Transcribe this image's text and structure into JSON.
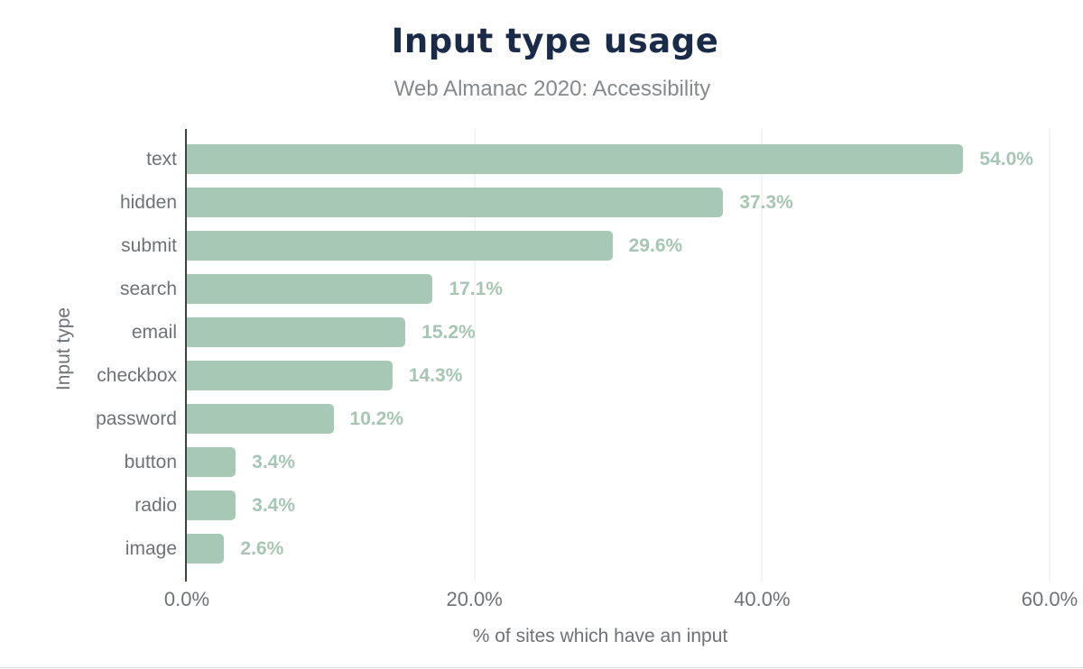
{
  "chart_data": {
    "type": "bar",
    "orientation": "horizontal",
    "title": "Input type usage",
    "subtitle": "Web Almanac 2020: Accessibility",
    "xlabel": "% of sites which have an input",
    "ylabel": "Input type",
    "categories": [
      "text",
      "hidden",
      "submit",
      "search",
      "email",
      "checkbox",
      "password",
      "button",
      "radio",
      "image"
    ],
    "values": [
      54.0,
      37.3,
      29.6,
      17.1,
      15.2,
      14.3,
      10.2,
      3.4,
      3.4,
      2.6
    ],
    "value_labels": [
      "54.0%",
      "37.3%",
      "29.6%",
      "17.1%",
      "15.2%",
      "14.3%",
      "10.2%",
      "3.4%",
      "3.4%",
      "2.6%"
    ],
    "x_ticks": [
      "0.0%",
      "20.0%",
      "40.0%",
      "60.0%"
    ],
    "xlim": [
      0,
      60
    ],
    "grid": "vertical-gridlines-at-20-40-60",
    "legend": "none",
    "colors": {
      "bar": "#a7c8b4",
      "value_label": "#a6c6b3",
      "title": "#1a2b49",
      "subtitle": "#85898c",
      "axis_text": "#6e7175",
      "axis_line": "#3b4248",
      "gridline": "#e9eaea",
      "background": "#ffffff"
    }
  }
}
